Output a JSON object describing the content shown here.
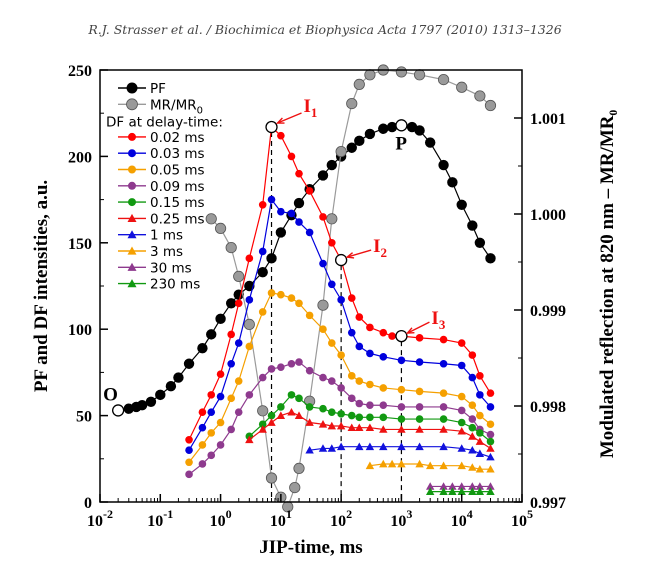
{
  "header": "R.J. Strasser et al. / Biochimica et Biophysica Acta 1797 (2010) 1313–1326",
  "chart_data": {
    "type": "scatter",
    "xlabel": "JIP-time, ms",
    "ylabel": "PF and DF intensities, a.u.",
    "y2label": "Modulated reflection at 820 nm – MR/MR₀",
    "xscale": "log",
    "xlim": [
      0.01,
      100000
    ],
    "ylim": [
      0,
      250
    ],
    "y2lim": [
      0.997,
      1.0015
    ],
    "x_ticks": [
      {
        "v": 0.01,
        "base": "10",
        "exp": "-2"
      },
      {
        "v": 0.1,
        "base": "10",
        "exp": "-1"
      },
      {
        "v": 1,
        "base": "10",
        "exp": "0"
      },
      {
        "v": 10,
        "base": "10",
        "exp": "1"
      },
      {
        "v": 100,
        "base": "10",
        "exp": "2"
      },
      {
        "v": 1000,
        "base": "10",
        "exp": "3"
      },
      {
        "v": 10000,
        "base": "10",
        "exp": "4"
      },
      {
        "v": 100000,
        "base": "10",
        "exp": "5"
      }
    ],
    "y_ticks": [
      0,
      50,
      100,
      150,
      200,
      250
    ],
    "y2_ticks": [
      "0.997",
      "0.998",
      "0.999",
      "1.000",
      "1.001"
    ],
    "legend_heading": "DF at delay-time:",
    "legend": [
      {
        "name": "PF",
        "color": "#000000",
        "marker": "circle"
      },
      {
        "name": "MR/MR",
        "sub": "0",
        "color": "#9a9a9a",
        "marker": "circle"
      },
      {
        "name": "0.02 ms",
        "color": "#ff0000",
        "marker": "circle"
      },
      {
        "name": "0.03 ms",
        "color": "#0000dd",
        "marker": "circle"
      },
      {
        "name": "0.05 ms",
        "color": "#f5a000",
        "marker": "circle"
      },
      {
        "name": "0.09 ms",
        "color": "#8e3a8e",
        "marker": "circle"
      },
      {
        "name": "0.15 ms",
        "color": "#119911",
        "marker": "circle"
      },
      {
        "name": "0.25 ms",
        "color": "#ee1111",
        "marker": "triangle"
      },
      {
        "name": "1 ms",
        "color": "#1111dd",
        "marker": "triangle"
      },
      {
        "name": "3 ms",
        "color": "#f5a000",
        "marker": "triangle"
      },
      {
        "name": "30 ms",
        "color": "#8e3a8e",
        "marker": "triangle"
      },
      {
        "name": "230 ms",
        "color": "#119911",
        "marker": "triangle"
      }
    ],
    "series": [
      {
        "name": "PF",
        "axis": "left",
        "color": "#000000",
        "marker": "circle",
        "line": true,
        "points": [
          [
            0.02,
            53
          ],
          [
            0.03,
            54
          ],
          [
            0.04,
            55
          ],
          [
            0.05,
            56
          ],
          [
            0.07,
            58
          ],
          [
            0.1,
            62
          ],
          [
            0.15,
            67
          ],
          [
            0.2,
            72
          ],
          [
            0.3,
            80
          ],
          [
            0.5,
            89
          ],
          [
            0.7,
            97
          ],
          [
            1,
            106
          ],
          [
            1.5,
            115
          ],
          [
            2,
            120
          ],
          [
            3,
            125
          ],
          [
            5,
            133
          ],
          [
            7,
            141
          ],
          [
            10,
            156
          ],
          [
            15,
            166
          ],
          [
            20,
            173
          ],
          [
            30,
            181
          ],
          [
            50,
            189
          ],
          [
            70,
            195
          ],
          [
            100,
            200
          ],
          [
            150,
            205
          ],
          [
            200,
            209
          ],
          [
            300,
            213
          ],
          [
            500,
            216
          ],
          [
            700,
            217
          ],
          [
            1000,
            218
          ],
          [
            1500,
            217
          ],
          [
            2000,
            215
          ],
          [
            3000,
            208
          ],
          [
            5000,
            195
          ],
          [
            7000,
            185
          ],
          [
            10000,
            172
          ],
          [
            15000,
            160
          ],
          [
            20000,
            150
          ],
          [
            30000,
            141
          ]
        ]
      },
      {
        "name": "MR/MR0",
        "axis": "right",
        "color": "#9a9a9a",
        "marker": "circle",
        "line": true,
        "points": [
          [
            0.7,
            0.99995
          ],
          [
            1,
            0.99985
          ],
          [
            1.5,
            0.99965
          ],
          [
            2,
            0.99935
          ],
          [
            3,
            0.99885
          ],
          [
            5,
            0.99795
          ],
          [
            7,
            0.99725
          ],
          [
            10,
            0.99705
          ],
          [
            13,
            0.99695
          ],
          [
            17,
            0.99715
          ],
          [
            20,
            0.99735
          ],
          [
            30,
            0.99805
          ],
          [
            50,
            0.99905
          ],
          [
            70,
            0.99995
          ],
          [
            100,
            1.00065
          ],
          [
            150,
            1.00115
          ],
          [
            200,
            1.00135
          ],
          [
            300,
            1.00145
          ],
          [
            500,
            1.0015
          ],
          [
            1000,
            1.00148
          ],
          [
            2000,
            1.00145
          ],
          [
            5000,
            1.0014
          ],
          [
            10000,
            1.00132
          ],
          [
            20000,
            1.00123
          ],
          [
            30000,
            1.00113
          ]
        ]
      },
      {
        "name": "0.02 ms",
        "axis": "left",
        "color": "#ff0000",
        "marker": "circle",
        "line": true,
        "points": [
          [
            0.3,
            36
          ],
          [
            0.5,
            52
          ],
          [
            0.7,
            62
          ],
          [
            1,
            74
          ],
          [
            1.5,
            97
          ],
          [
            2,
            115
          ],
          [
            3,
            141
          ],
          [
            5,
            172
          ],
          [
            7,
            217
          ],
          [
            10,
            212
          ],
          [
            15,
            200
          ],
          [
            20,
            190
          ],
          [
            30,
            180
          ],
          [
            50,
            165
          ],
          [
            70,
            150
          ],
          [
            100,
            140
          ],
          [
            150,
            118
          ],
          [
            200,
            107
          ],
          [
            300,
            101
          ],
          [
            500,
            98
          ],
          [
            700,
            96
          ],
          [
            1000,
            96
          ],
          [
            2000,
            95
          ],
          [
            5000,
            94
          ],
          [
            10000,
            92
          ],
          [
            15000,
            85
          ],
          [
            20000,
            73
          ],
          [
            30000,
            63
          ]
        ]
      },
      {
        "name": "0.03 ms",
        "axis": "left",
        "color": "#0000dd",
        "marker": "circle",
        "line": true,
        "points": [
          [
            0.3,
            30
          ],
          [
            0.5,
            43
          ],
          [
            0.7,
            52
          ],
          [
            1,
            61
          ],
          [
            1.5,
            80
          ],
          [
            2,
            92
          ],
          [
            3,
            117
          ],
          [
            5,
            145
          ],
          [
            7,
            175
          ],
          [
            10,
            168
          ],
          [
            15,
            167
          ],
          [
            20,
            162
          ],
          [
            30,
            156
          ],
          [
            50,
            138
          ],
          [
            70,
            126
          ],
          [
            100,
            117
          ],
          [
            150,
            98
          ],
          [
            200,
            90
          ],
          [
            300,
            86
          ],
          [
            500,
            84
          ],
          [
            1000,
            82
          ],
          [
            2000,
            81
          ],
          [
            5000,
            80
          ],
          [
            10000,
            79
          ],
          [
            15000,
            72
          ],
          [
            20000,
            62
          ],
          [
            30000,
            55
          ]
        ]
      },
      {
        "name": "0.05 ms",
        "axis": "left",
        "color": "#f5a000",
        "marker": "circle",
        "line": true,
        "points": [
          [
            0.3,
            23
          ],
          [
            0.5,
            33
          ],
          [
            0.7,
            40
          ],
          [
            1,
            46
          ],
          [
            1.5,
            60
          ],
          [
            2,
            70
          ],
          [
            3,
            90
          ],
          [
            5,
            110
          ],
          [
            7,
            121
          ],
          [
            10,
            120
          ],
          [
            15,
            118
          ],
          [
            20,
            115
          ],
          [
            30,
            108
          ],
          [
            50,
            100
          ],
          [
            70,
            92
          ],
          [
            100,
            85
          ],
          [
            150,
            73
          ],
          [
            200,
            70
          ],
          [
            300,
            68
          ],
          [
            500,
            66
          ],
          [
            1000,
            65
          ],
          [
            2000,
            64
          ],
          [
            5000,
            63
          ],
          [
            10000,
            61
          ],
          [
            15000,
            56
          ],
          [
            20000,
            50
          ],
          [
            30000,
            45
          ]
        ]
      },
      {
        "name": "0.09 ms",
        "axis": "left",
        "color": "#8e3a8e",
        "marker": "circle",
        "line": true,
        "points": [
          [
            0.3,
            16
          ],
          [
            0.5,
            22
          ],
          [
            0.7,
            27
          ],
          [
            1,
            33
          ],
          [
            1.5,
            42
          ],
          [
            2,
            52
          ],
          [
            3,
            62
          ],
          [
            5,
            72
          ],
          [
            7,
            77
          ],
          [
            10,
            78
          ],
          [
            15,
            80
          ],
          [
            20,
            81
          ],
          [
            30,
            76
          ],
          [
            50,
            72
          ],
          [
            70,
            70
          ],
          [
            100,
            66
          ],
          [
            150,
            60
          ],
          [
            200,
            57
          ],
          [
            300,
            56
          ],
          [
            500,
            56
          ],
          [
            1000,
            55
          ],
          [
            2000,
            55
          ],
          [
            5000,
            55
          ],
          [
            10000,
            53
          ],
          [
            15000,
            48
          ],
          [
            20000,
            42
          ],
          [
            30000,
            39
          ]
        ]
      },
      {
        "name": "0.15 ms",
        "axis": "left",
        "color": "#119911",
        "marker": "circle",
        "line": true,
        "points": [
          [
            3,
            38
          ],
          [
            5,
            45
          ],
          [
            7,
            50
          ],
          [
            10,
            55
          ],
          [
            15,
            62
          ],
          [
            20,
            60
          ],
          [
            30,
            55
          ],
          [
            50,
            54
          ],
          [
            70,
            52
          ],
          [
            100,
            51
          ],
          [
            150,
            50
          ],
          [
            200,
            49
          ],
          [
            300,
            49
          ],
          [
            500,
            49
          ],
          [
            1000,
            48
          ],
          [
            2000,
            48
          ],
          [
            5000,
            48
          ],
          [
            10000,
            46
          ],
          [
            15000,
            43
          ],
          [
            20000,
            40
          ],
          [
            30000,
            35
          ]
        ]
      },
      {
        "name": "0.25 ms",
        "axis": "left",
        "color": "#ee1111",
        "marker": "triangle",
        "line": true,
        "points": [
          [
            3,
            36
          ],
          [
            5,
            42
          ],
          [
            7,
            46
          ],
          [
            10,
            50
          ],
          [
            15,
            52
          ],
          [
            20,
            50
          ],
          [
            30,
            46
          ],
          [
            50,
            45
          ],
          [
            70,
            44
          ],
          [
            100,
            44
          ],
          [
            150,
            43
          ],
          [
            200,
            43
          ],
          [
            300,
            43
          ],
          [
            500,
            42
          ],
          [
            1000,
            42
          ],
          [
            2000,
            42
          ],
          [
            5000,
            42
          ],
          [
            10000,
            41
          ],
          [
            15000,
            38
          ],
          [
            20000,
            35
          ],
          [
            30000,
            31
          ]
        ]
      },
      {
        "name": "1 ms",
        "axis": "left",
        "color": "#1111dd",
        "marker": "triangle",
        "line": true,
        "points": [
          [
            30,
            30
          ],
          [
            50,
            31
          ],
          [
            70,
            31
          ],
          [
            100,
            32
          ],
          [
            200,
            32
          ],
          [
            300,
            32
          ],
          [
            500,
            32
          ],
          [
            1000,
            32
          ],
          [
            2000,
            32
          ],
          [
            5000,
            32
          ],
          [
            10000,
            31
          ],
          [
            15000,
            30
          ],
          [
            20000,
            28
          ],
          [
            30000,
            26
          ]
        ]
      },
      {
        "name": "3 ms",
        "axis": "left",
        "color": "#f5a000",
        "marker": "triangle",
        "line": true,
        "points": [
          [
            300,
            21
          ],
          [
            500,
            22
          ],
          [
            700,
            22
          ],
          [
            1000,
            22
          ],
          [
            2000,
            22
          ],
          [
            3000,
            21
          ],
          [
            5000,
            21
          ],
          [
            10000,
            21
          ],
          [
            15000,
            20
          ],
          [
            20000,
            19
          ],
          [
            30000,
            19
          ]
        ]
      },
      {
        "name": "30 ms",
        "axis": "left",
        "color": "#8e3a8e",
        "marker": "triangle",
        "line": true,
        "points": [
          [
            3000,
            9
          ],
          [
            5000,
            9
          ],
          [
            7000,
            9
          ],
          [
            10000,
            9
          ],
          [
            15000,
            9
          ],
          [
            20000,
            9
          ],
          [
            30000,
            9
          ]
        ]
      },
      {
        "name": "230 ms",
        "axis": "left",
        "color": "#119911",
        "marker": "triangle",
        "line": true,
        "points": [
          [
            3000,
            6
          ],
          [
            5000,
            6
          ],
          [
            7000,
            6
          ],
          [
            10000,
            6
          ],
          [
            15000,
            6
          ],
          [
            20000,
            6
          ],
          [
            30000,
            6
          ]
        ]
      }
    ],
    "annotations": {
      "O": {
        "label": "O",
        "x": 0.02,
        "y": 53
      },
      "P": {
        "label": "P",
        "x": 1000,
        "y": 218
      },
      "I1": {
        "label": "I",
        "sub": "1",
        "x": 7,
        "y": 217
      },
      "I2": {
        "label": "I",
        "sub": "2",
        "x": 100,
        "y": 140
      },
      "I3": {
        "label": "I",
        "sub": "3",
        "x": 1000,
        "y": 96
      }
    }
  }
}
